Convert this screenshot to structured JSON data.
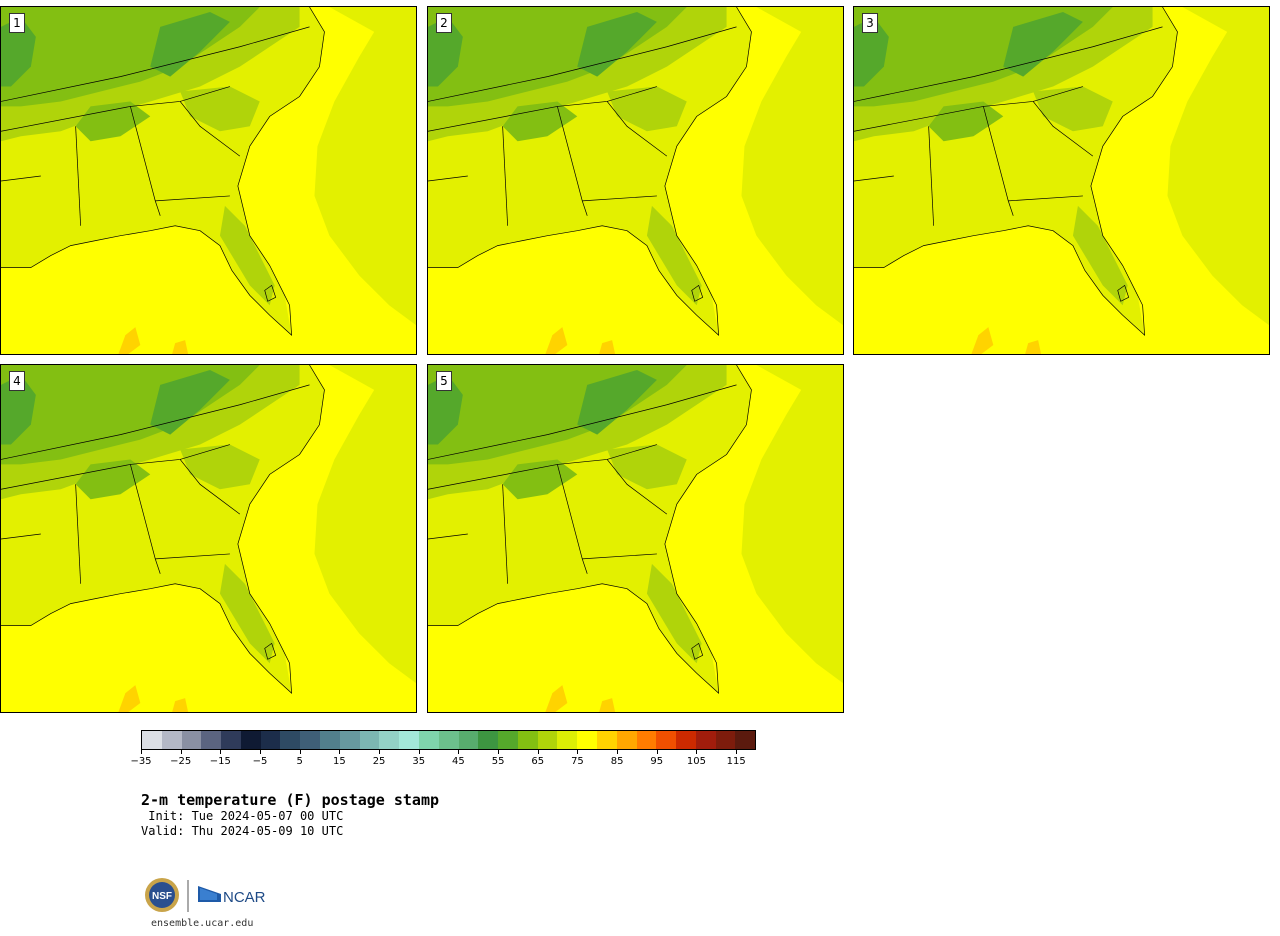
{
  "panels": [
    {
      "label": "1"
    },
    {
      "label": "2"
    },
    {
      "label": "3"
    },
    {
      "label": "4"
    },
    {
      "label": "5"
    }
  ],
  "colorbar": {
    "colors": [
      "#dcdfe5",
      "#b4b8c6",
      "#8a90a3",
      "#5b6480",
      "#2f3b5a",
      "#0f1a33",
      "#1c2d4a",
      "#2e4a63",
      "#3f5f77",
      "#527f8c",
      "#67999f",
      "#7cb7b2",
      "#93d1c6",
      "#a3e8d9",
      "#7fd4ac",
      "#6cc08c",
      "#58ac6e",
      "#3d9541",
      "#55a82b",
      "#83bf12",
      "#b0d40a",
      "#dcee05",
      "#ffff00",
      "#ffd300",
      "#ffa700",
      "#ff7c00",
      "#f05000",
      "#cc2a00",
      "#a11d0c",
      "#7d1c0c",
      "#5b1a0e"
    ],
    "tick_labels": [
      "−35",
      "−25",
      "−15",
      "−5",
      "5",
      "15",
      "25",
      "35",
      "45",
      "55",
      "65",
      "75",
      "85",
      "95",
      "105",
      "115"
    ]
  },
  "title": "2-m temperature (F) postage stamp",
  "init": " Init: Tue 2024-05-07 00 UTC",
  "valid": "Valid: Thu 2024-05-09 10 UTC",
  "logos": {
    "nsf": "NSF",
    "ncar": "NCAR"
  },
  "website": "ensemble.ucar.edu"
}
